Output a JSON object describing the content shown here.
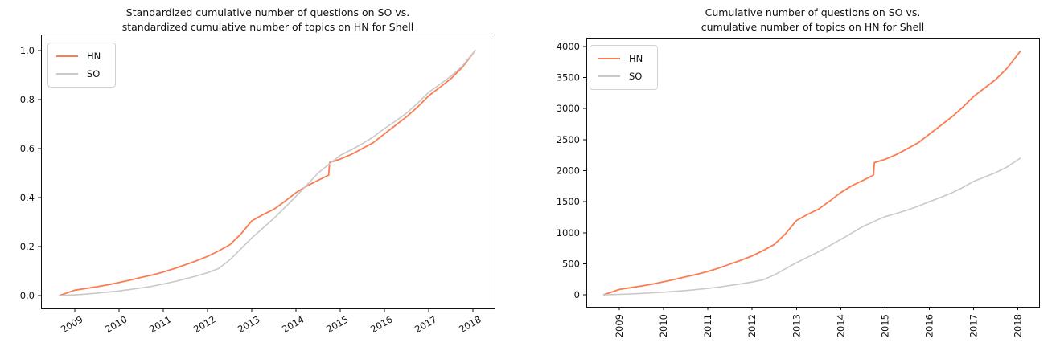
{
  "figure": {
    "background": "#ffffff"
  },
  "colors": {
    "hn": "#fb7c50",
    "so": "#c9c9c9",
    "spine": "#111111"
  },
  "chart_data": [
    {
      "id": "standardized",
      "type": "line",
      "title_line1": "Standardized cumulative number of questions on SO vs.",
      "title_line2": "standardized cumulative number of topics on HN for Shell",
      "legend": {
        "position": "upper left",
        "entries": [
          "HN",
          "SO"
        ]
      },
      "xlabel": "",
      "ylabel": "",
      "grid": false,
      "xlim": [
        2008.236,
        2018.49
      ],
      "ylim": [
        -0.0525,
        1.0656
      ],
      "xticks": [
        2009,
        2010,
        2011,
        2012,
        2013,
        2014,
        2015,
        2016,
        2017,
        2018
      ],
      "xtick_labels": [
        "2009",
        "2010",
        "2011",
        "2012",
        "2013",
        "2014",
        "2015",
        "2016",
        "2017",
        "2018"
      ],
      "xtick_rotation": 30,
      "yticks": [
        0.0,
        0.2,
        0.4,
        0.6,
        0.8,
        1.0
      ],
      "ytick_labels": [
        "0.0",
        "0.2",
        "0.4",
        "0.6",
        "0.8",
        "1.0"
      ],
      "x": [
        2008.65,
        2009,
        2009.25,
        2009.5,
        2009.75,
        2010,
        2010.25,
        2010.5,
        2010.75,
        2011,
        2011.25,
        2011.5,
        2011.75,
        2012,
        2012.25,
        2012.5,
        2012.75,
        2013,
        2013.25,
        2013.5,
        2013.75,
        2014,
        2014.25,
        2014.5,
        2014.74,
        2014.76,
        2015,
        2015.25,
        2015.5,
        2015.75,
        2016,
        2016.25,
        2016.5,
        2016.75,
        2017,
        2017.25,
        2017.5,
        2017.75,
        2018.05
      ],
      "series": [
        {
          "name": "HN",
          "color": "#fb7c50",
          "values": [
            0,
            0.022,
            0.029,
            0.036,
            0.044,
            0.053,
            0.063,
            0.074,
            0.084,
            0.096,
            0.11,
            0.126,
            0.142,
            0.16,
            0.182,
            0.207,
            0.25,
            0.305,
            0.33,
            0.352,
            0.385,
            0.42,
            0.448,
            0.47,
            0.492,
            0.543,
            0.557,
            0.576,
            0.6,
            0.625,
            0.66,
            0.695,
            0.73,
            0.77,
            0.815,
            0.85,
            0.885,
            0.93,
            1.0
          ]
        },
        {
          "name": "SO",
          "color": "#c9c9c9",
          "values": [
            0,
            0.003,
            0.006,
            0.01,
            0.014,
            0.019,
            0.025,
            0.031,
            0.038,
            0.047,
            0.057,
            0.068,
            0.08,
            0.093,
            0.11,
            0.145,
            0.19,
            0.235,
            0.275,
            0.315,
            0.36,
            0.405,
            0.452,
            0.5,
            0.535,
            0.538,
            0.572,
            0.595,
            0.62,
            0.648,
            0.682,
            0.712,
            0.745,
            0.785,
            0.83,
            0.862,
            0.895,
            0.935,
            1.0
          ]
        }
      ]
    },
    {
      "id": "cumulative",
      "type": "line",
      "title_line1": "Cumulative number of questions on SO vs.",
      "title_line2": "cumulative number of topics on HN for Shell",
      "legend": {
        "position": "upper left",
        "entries": [
          "HN",
          "SO"
        ]
      },
      "xlabel": "",
      "ylabel": "",
      "grid": false,
      "xlim": [
        2008.256,
        2018.479
      ],
      "ylim": [
        -194,
        4142
      ],
      "xticks": [
        2009,
        2010,
        2011,
        2012,
        2013,
        2014,
        2015,
        2016,
        2017,
        2018
      ],
      "xtick_labels": [
        "2009",
        "2010",
        "2011",
        "2012",
        "2013",
        "2014",
        "2015",
        "2016",
        "2017",
        "2018"
      ],
      "xtick_rotation": 90,
      "yticks": [
        0,
        500,
        1000,
        1500,
        2000,
        2500,
        3000,
        3500,
        4000
      ],
      "ytick_labels": [
        "0",
        "500",
        "1000",
        "1500",
        "2000",
        "2500",
        "3000",
        "3500",
        "4000"
      ],
      "x": [
        2008.65,
        2009,
        2009.25,
        2009.5,
        2009.75,
        2010,
        2010.25,
        2010.5,
        2010.75,
        2011,
        2011.25,
        2011.5,
        2011.75,
        2012,
        2012.25,
        2012.5,
        2012.75,
        2013,
        2013.25,
        2013.5,
        2013.75,
        2014,
        2014.25,
        2014.5,
        2014.74,
        2014.76,
        2015,
        2015.25,
        2015.5,
        2015.75,
        2016,
        2016.25,
        2016.5,
        2016.75,
        2017,
        2017.25,
        2017.5,
        2017.75,
        2018.05
      ],
      "series": [
        {
          "name": "HN",
          "color": "#fb7c50",
          "values": [
            0,
            86,
            114,
            141,
            172,
            208,
            247,
            290,
            329,
            376,
            431,
            494,
            557,
            627,
            713,
            811,
            980,
            1196,
            1294,
            1380,
            1509,
            1646,
            1756,
            1842,
            1929,
            2129,
            2183,
            2258,
            2352,
            2450,
            2587,
            2724,
            2862,
            3018,
            3195,
            3332,
            3469,
            3646,
            3920
          ]
        },
        {
          "name": "SO",
          "color": "#c9c9c9",
          "values": [
            0,
            7,
            13,
            22,
            31,
            42,
            55,
            68,
            84,
            103,
            125,
            150,
            176,
            205,
            242,
            319,
            418,
            517,
            605,
            693,
            792,
            891,
            994,
            1100,
            1177,
            1184,
            1258,
            1309,
            1364,
            1426,
            1500,
            1566,
            1639,
            1727,
            1826,
            1896,
            1969,
            2057,
            2200
          ]
        }
      ]
    }
  ]
}
